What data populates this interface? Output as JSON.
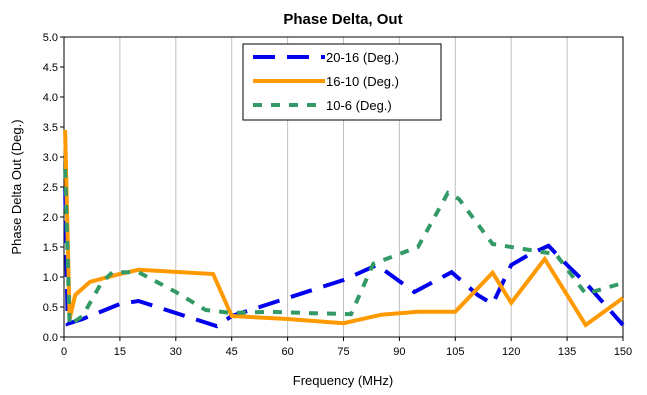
{
  "chart_data": {
    "type": "line",
    "title": "Phase Delta, Out",
    "xlabel": "Frequency (MHz)",
    "ylabel": "Phase Delta Out (Deg.)",
    "xlim": [
      0,
      150
    ],
    "ylim": [
      0,
      5
    ],
    "x_ticks": [
      "0",
      "15",
      "30",
      "45",
      "60",
      "75",
      "90",
      "105",
      "120",
      "135",
      "150"
    ],
    "y_ticks": [
      "0.0",
      "0.5",
      "1.0",
      "1.5",
      "2.0",
      "2.5",
      "3.0",
      "3.5",
      "4.0",
      "4.5",
      "5.0"
    ],
    "grid": "vertical",
    "legend_position": "top-center",
    "series": [
      {
        "name": "20-16 (Deg.)",
        "color": "#0000ee",
        "dash": "long-dash",
        "points": [
          [
            0.3,
            2.5
          ],
          [
            1,
            0.22
          ],
          [
            5,
            0.3
          ],
          [
            15,
            0.55
          ],
          [
            20,
            0.6
          ],
          [
            30,
            0.4
          ],
          [
            41,
            0.18
          ],
          [
            45,
            0.35
          ],
          [
            60,
            0.65
          ],
          [
            75,
            0.95
          ],
          [
            84,
            1.2
          ],
          [
            94,
            0.75
          ],
          [
            104,
            1.08
          ],
          [
            111,
            0.7
          ],
          [
            115,
            0.55
          ],
          [
            120,
            1.2
          ],
          [
            125,
            1.38
          ],
          [
            130,
            1.52
          ],
          [
            135,
            1.2
          ],
          [
            140,
            0.9
          ],
          [
            145,
            0.55
          ],
          [
            150,
            0.2
          ]
        ]
      },
      {
        "name": "16-10 (Deg.)",
        "color": "#ff9900",
        "dash": "solid",
        "points": [
          [
            0.3,
            3.45
          ],
          [
            1.5,
            0.3
          ],
          [
            3,
            0.7
          ],
          [
            7,
            0.92
          ],
          [
            15,
            1.05
          ],
          [
            20,
            1.12
          ],
          [
            40,
            1.05
          ],
          [
            45,
            0.35
          ],
          [
            60,
            0.3
          ],
          [
            75,
            0.23
          ],
          [
            85,
            0.37
          ],
          [
            95,
            0.42
          ],
          [
            105,
            0.42
          ],
          [
            115,
            1.07
          ],
          [
            120,
            0.57
          ],
          [
            129,
            1.3
          ],
          [
            140,
            0.2
          ],
          [
            150,
            0.65
          ]
        ]
      },
      {
        "name": "10-6 (Deg.)",
        "color": "#339966",
        "dash": "short-dash",
        "points": [
          [
            0.3,
            2.8
          ],
          [
            1.5,
            0.2
          ],
          [
            5,
            0.35
          ],
          [
            10,
            0.9
          ],
          [
            13,
            1.08
          ],
          [
            20,
            1.08
          ],
          [
            30,
            0.75
          ],
          [
            38,
            0.45
          ],
          [
            45,
            0.4
          ],
          [
            55,
            0.42
          ],
          [
            65,
            0.4
          ],
          [
            77,
            0.38
          ],
          [
            83,
            1.22
          ],
          [
            95,
            1.5
          ],
          [
            103,
            2.4
          ],
          [
            106,
            2.3
          ],
          [
            115,
            1.55
          ],
          [
            125,
            1.45
          ],
          [
            132,
            1.38
          ],
          [
            140,
            0.72
          ],
          [
            150,
            0.9
          ]
        ]
      }
    ]
  }
}
